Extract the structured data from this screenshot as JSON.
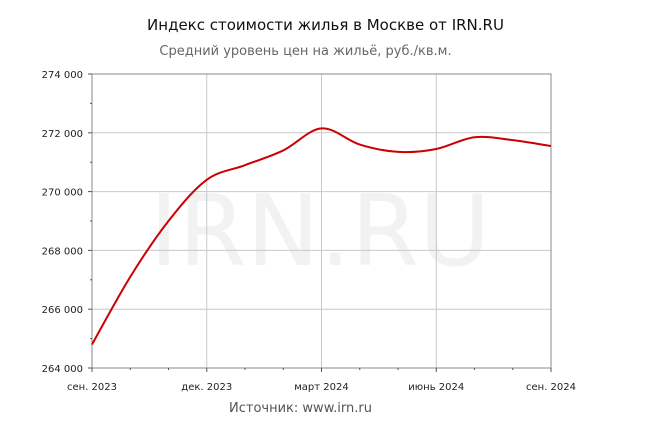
{
  "header": {
    "title": "Индекс стоимости жилья в Москве от IRN.RU",
    "subtitle": "Средний уровень цен на жильё, руб./кв.м."
  },
  "footer": {
    "source": "Источник: www.irn.ru"
  },
  "watermark": "IRN.RU",
  "chart_data": {
    "type": "line",
    "title": "Индекс стоимости жилья в Москве от IRN.RU",
    "subtitle": "Средний уровень цен на жильё, руб./кв.м.",
    "xlabel": "",
    "ylabel": "",
    "x_ticks": [
      "сен. 2023",
      "дек. 2023",
      "март 2024",
      "июнь 2024",
      "сен. 2024"
    ],
    "y_ticks": [
      "264 000",
      "266 000",
      "268 000",
      "270 000",
      "272 000",
      "274 000"
    ],
    "ylim": [
      264000,
      274000
    ],
    "xlim": [
      "2023-09",
      "2024-09"
    ],
    "grid": true,
    "line_color": "#cc0000",
    "series": [
      {
        "x": [
          "2023-09",
          "2023-10",
          "2023-11",
          "2023-12",
          "2024-01",
          "2024-02",
          "2024-03",
          "2024-04",
          "2024-05",
          "2024-06",
          "2024-07",
          "2024-08",
          "2024-09"
        ],
        "values": [
          264800,
          267100,
          269000,
          270400,
          270900,
          271400,
          272150,
          271600,
          271350,
          271450,
          271850,
          271750,
          271550
        ]
      }
    ]
  }
}
